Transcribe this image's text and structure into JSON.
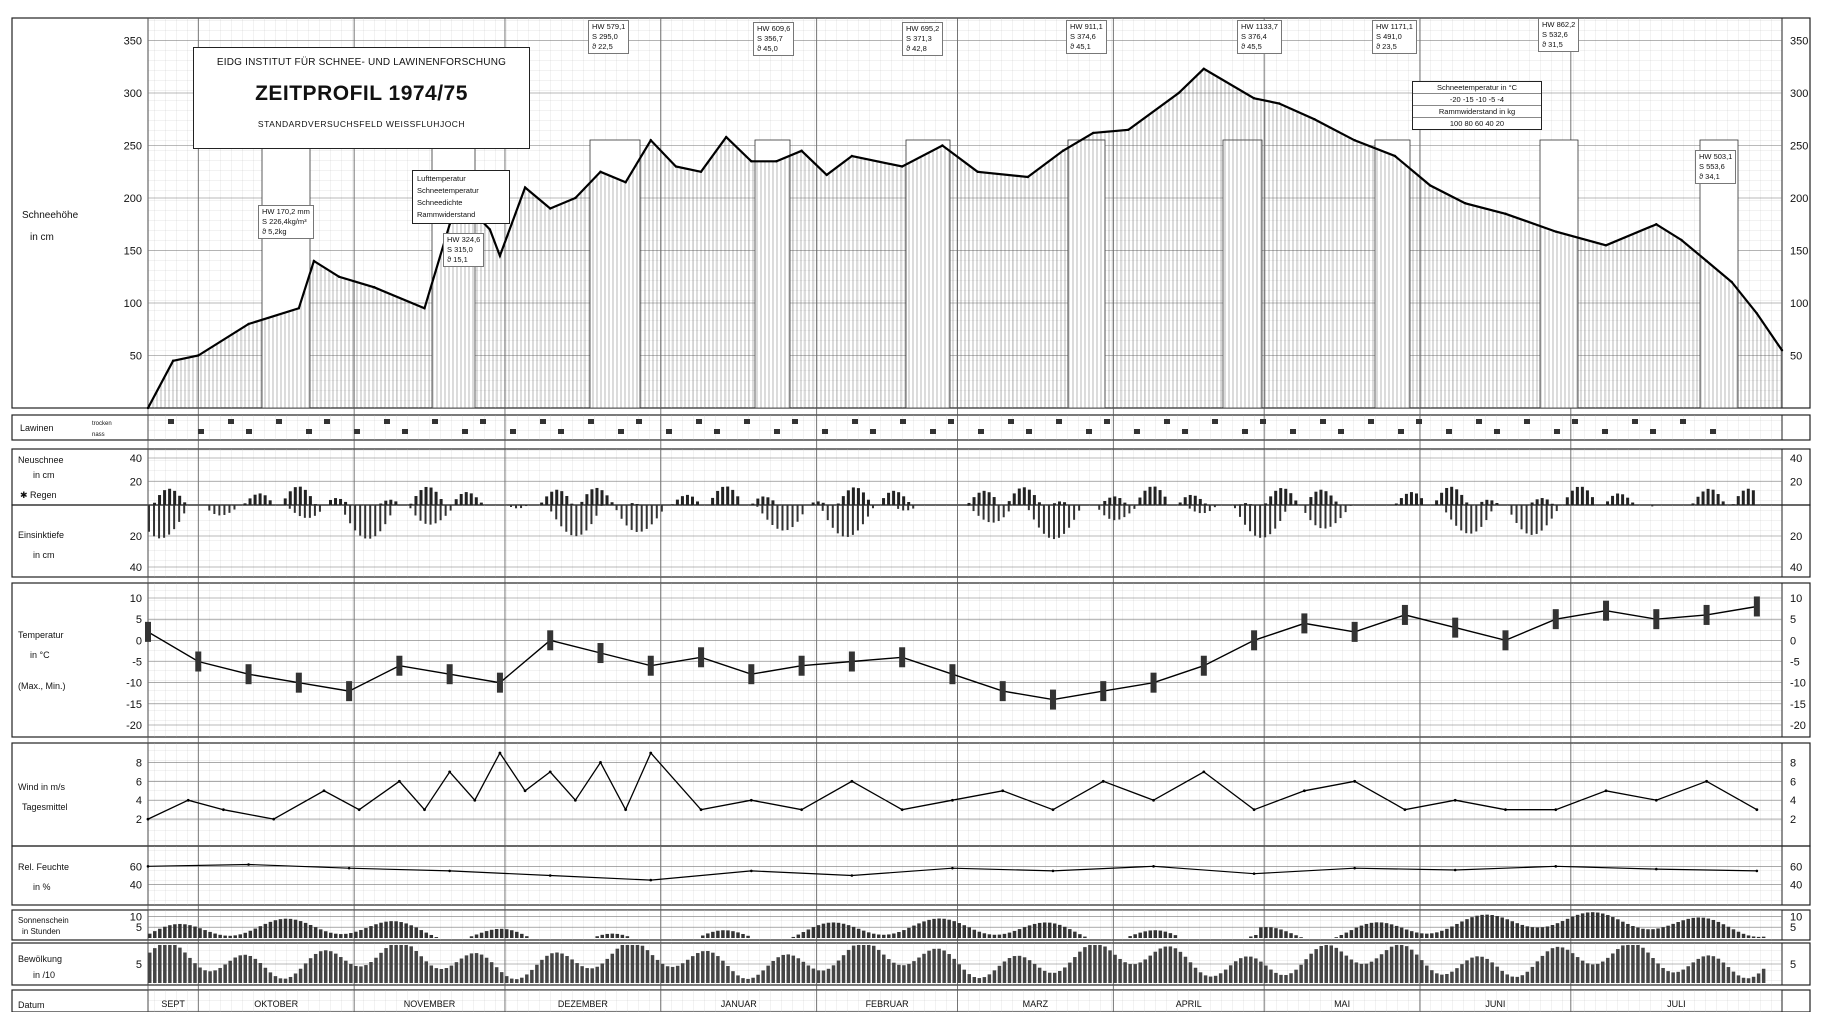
{
  "header": {
    "institute": "EIDG INSTITUT FÜR SCHNEE- UND LAWINENFORSCHUNG",
    "title": "ZEITPROFIL 1974/75",
    "subtitle": "STANDARDVERSUCHSFELD WEISSFLUHJOCH"
  },
  "legend_box": [
    "Lufttemperatur",
    "Schneetemperatur",
    "Schneedichte",
    "Rammwiderstand"
  ],
  "snow_temp_box": {
    "title": "Schneetemperatur in °C",
    "temps": "-20 -15 -10 -5 -4",
    "ram_title": "Rammwiderstand in kg",
    "ram": "100 80 60 40 20"
  },
  "hw_annotations": [
    {
      "hw": "HW 170,2 mm",
      "s": "S 226,4kg/m³",
      "t": "ϑ 5,2kg"
    },
    {
      "hw": "HW 324,6",
      "s": "S 315,0",
      "t": "ϑ 15,1"
    },
    {
      "hw": "HW 579,1",
      "s": "S 295,0",
      "t": "ϑ 22,5"
    },
    {
      "hw": "HW 609,6",
      "s": "S 356,7",
      "t": "ϑ 45,0"
    },
    {
      "hw": "HW 695,2",
      "s": "S 371,3",
      "t": "ϑ 42,8"
    },
    {
      "hw": "HW 911,1",
      "s": "S 374,6",
      "t": "ϑ 45,1"
    },
    {
      "hw": "HW 1133,7",
      "s": "S 376,4",
      "t": "ϑ 45,5"
    },
    {
      "hw": "HW 1171,1",
      "s": "S 491,0",
      "t": "ϑ 23,5"
    },
    {
      "hw": "HW 862,2",
      "s": "S 532,6",
      "t": "ϑ 31,5"
    },
    {
      "hw": "HW 503,1",
      "s": "S 553,6",
      "t": "ϑ 34,1"
    }
  ],
  "panels": {
    "snow": {
      "label1": "Schneehöhe",
      "label2": "in cm"
    },
    "avalanche": {
      "label": "Lawinen",
      "sub1": "trocken",
      "sub2": "nass"
    },
    "newsnow": {
      "label1": "Neuschnee",
      "label2": "in cm",
      "label3": "✱ Regen"
    },
    "penetration": {
      "label1": "Einsinktiefe",
      "label2": "in cm"
    },
    "temp": {
      "label1": "Temperatur",
      "label2": "in °C",
      "label3": "(Max., Min.)"
    },
    "wind": {
      "label1": "Wind in m/s",
      "label2": "Tagesmittel"
    },
    "humidity": {
      "label1": "Rel. Feuchte",
      "label2": "in %"
    },
    "sunshine": {
      "label1": "Sonnenschein",
      "label2": "in Stunden"
    },
    "cloud": {
      "label1": "Bewölkung",
      "label2": "in /10"
    },
    "date": {
      "label": "Datum"
    }
  },
  "months": [
    "SEPT",
    "OKTOBER",
    "NOVEMBER",
    "DEZEMBER",
    "JANUAR",
    "FEBRUAR",
    "MARZ",
    "APRIL",
    "MAI",
    "JUNI",
    "JULI"
  ],
  "chart_data": [
    {
      "type": "line",
      "ylabel": "Schneehöhe in cm",
      "ylim": [
        0,
        360
      ],
      "yticks": [
        50,
        100,
        150,
        200,
        250,
        300,
        350
      ],
      "x": [
        0,
        5,
        10,
        20,
        30,
        33,
        38,
        45,
        55,
        60,
        62,
        68,
        70,
        75,
        80,
        85,
        90,
        95,
        100,
        105,
        110,
        115,
        120,
        125,
        130,
        135,
        140,
        150,
        158,
        165,
        175,
        182,
        188,
        195,
        205,
        210,
        220,
        225,
        232,
        240,
        248,
        255,
        262,
        270,
        280,
        290,
        300,
        305,
        310,
        315,
        320,
        325
      ],
      "y": [
        0,
        45,
        50,
        80,
        95,
        140,
        125,
        115,
        95,
        175,
        200,
        170,
        145,
        210,
        190,
        200,
        225,
        215,
        255,
        230,
        225,
        258,
        235,
        235,
        245,
        222,
        240,
        230,
        250,
        225,
        220,
        245,
        262,
        265,
        300,
        323,
        295,
        290,
        275,
        255,
        240,
        212,
        195,
        185,
        168,
        155,
        175,
        160,
        140,
        120,
        90,
        55
      ]
    },
    {
      "type": "bar",
      "ylabel": "Neuschnee in cm",
      "ylim": [
        0,
        40
      ],
      "yticks": [
        20,
        40
      ]
    },
    {
      "type": "bar",
      "ylabel": "Einsinktiefe in cm",
      "ylim": [
        0,
        40
      ],
      "yticks": [
        20,
        40
      ]
    },
    {
      "type": "line",
      "ylabel": "Temperatur in °C (Max., Min.)",
      "ylim": [
        -20,
        10
      ],
      "yticks": [
        10,
        5,
        0,
        -5,
        -10,
        -15,
        -20
      ],
      "x": [
        0,
        10,
        20,
        30,
        40,
        50,
        60,
        70,
        80,
        90,
        100,
        110,
        120,
        130,
        140,
        150,
        160,
        170,
        180,
        190,
        200,
        210,
        220,
        230,
        240,
        250,
        260,
        270,
        280,
        290,
        300,
        310,
        320
      ],
      "y": [
        2,
        -5,
        -8,
        -10,
        -12,
        -6,
        -8,
        -10,
        0,
        -3,
        -6,
        -4,
        -8,
        -6,
        -5,
        -4,
        -8,
        -12,
        -14,
        -12,
        -10,
        -6,
        0,
        4,
        2,
        6,
        3,
        0,
        5,
        7,
        5,
        6,
        8
      ]
    },
    {
      "type": "line",
      "ylabel": "Wind in m/s Tagesmittel",
      "ylim": [
        0,
        9
      ],
      "yticks": [
        2,
        4,
        6,
        8
      ],
      "x": [
        0,
        8,
        15,
        25,
        35,
        42,
        50,
        55,
        60,
        65,
        70,
        75,
        80,
        85,
        90,
        95,
        100,
        110,
        120,
        130,
        140,
        150,
        160,
        170,
        180,
        190,
        200,
        210,
        220,
        230,
        240,
        250,
        260,
        270,
        280,
        290,
        300,
        310,
        320
      ],
      "y": [
        2,
        4,
        3,
        2,
        5,
        3,
        6,
        3,
        7,
        4,
        9,
        5,
        7,
        4,
        8,
        3,
        9,
        3,
        4,
        3,
        6,
        3,
        4,
        5,
        3,
        6,
        4,
        7,
        3,
        5,
        6,
        3,
        4,
        3,
        3,
        5,
        4,
        6,
        3
      ]
    },
    {
      "type": "line",
      "ylabel": "Rel. Feuchte in %",
      "ylim": [
        20,
        80
      ],
      "yticks": [
        40,
        60
      ],
      "x": [
        0,
        20,
        40,
        60,
        80,
        100,
        120,
        140,
        160,
        180,
        200,
        220,
        240,
        260,
        280,
        300,
        320
      ],
      "y": [
        60,
        62,
        58,
        55,
        50,
        45,
        55,
        50,
        58,
        55,
        60,
        52,
        58,
        56,
        60,
        57,
        55
      ]
    },
    {
      "type": "bar",
      "ylabel": "Sonnenschein in Stunden",
      "ylim": [
        0,
        12
      ],
      "yticks": [
        5,
        10
      ]
    },
    {
      "type": "bar",
      "ylabel": "Bewölkung in /10",
      "ylim": [
        0,
        10
      ],
      "yticks": [
        5
      ]
    }
  ]
}
